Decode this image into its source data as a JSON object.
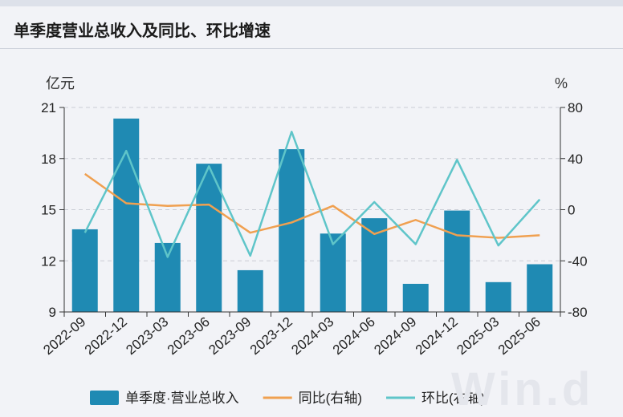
{
  "title": "单季度营业总收入及同比、环比增速",
  "watermark": "Win.d",
  "chart_data": {
    "type": "bar",
    "categories": [
      "2022-09",
      "2022-12",
      "2023-03",
      "2023-06",
      "2023-09",
      "2023-12",
      "2024-03",
      "2024-06",
      "2024-09",
      "2024-12",
      "2025-03",
      "2025-06"
    ],
    "y_left": {
      "unit": "亿元",
      "ylim": [
        9,
        21
      ],
      "ticks": [
        9,
        12,
        15,
        18,
        21
      ]
    },
    "y_right": {
      "unit": "%",
      "ylim": [
        -80,
        80
      ],
      "ticks": [
        -80,
        -40,
        0,
        40,
        80
      ]
    },
    "grid": true,
    "legend_position": "bottom",
    "series": [
      {
        "name": "单季度·营业总收入",
        "type": "bar",
        "axis": "left",
        "color": "#1f8ab3",
        "values": [
          13.85,
          20.35,
          13.05,
          17.7,
          11.45,
          18.55,
          13.6,
          14.5,
          10.65,
          14.95,
          10.75,
          11.8
        ]
      },
      {
        "name": "同比(右轴)",
        "type": "line",
        "axis": "right",
        "color": "#f0a050",
        "values": [
          28,
          5,
          3,
          4,
          -18,
          -10,
          3,
          -19,
          -8,
          -20,
          -22,
          -20
        ]
      },
      {
        "name": "环比(右轴)",
        "type": "line",
        "axis": "right",
        "color": "#5fc5c9",
        "values": [
          -18,
          46,
          -37,
          34,
          -36,
          61,
          -27,
          6,
          -27,
          39,
          -28,
          8
        ]
      }
    ]
  }
}
